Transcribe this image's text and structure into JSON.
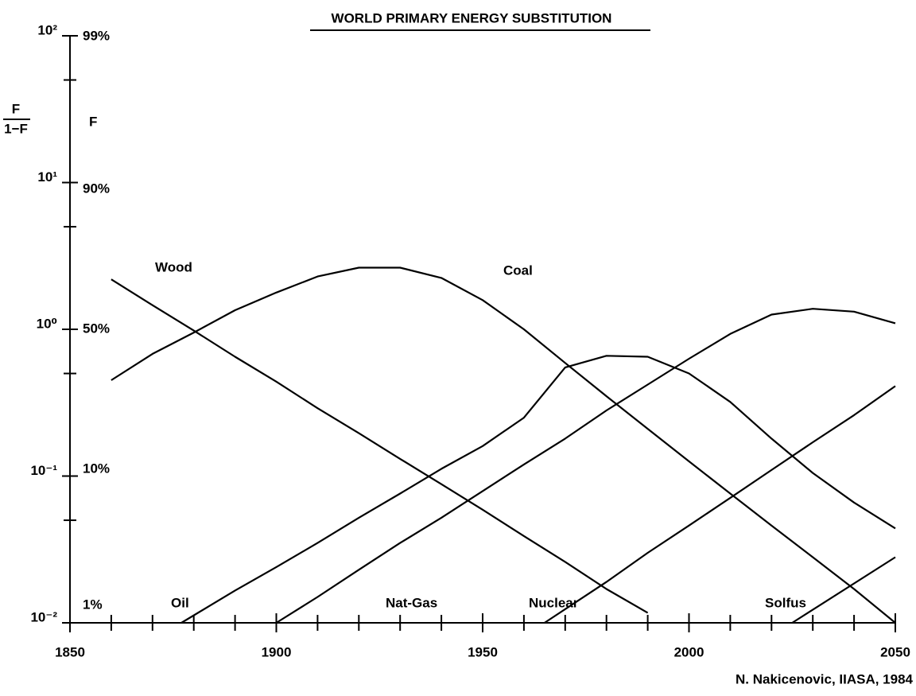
{
  "chart_data": {
    "type": "line",
    "title": "WORLD PRIMARY ENERGY SUBSTITUTION",
    "ylabel": {
      "numerator": "F",
      "denominator": "1−F"
    },
    "y2label": "F",
    "credit": "N. Nakicenovic, IIASA, 1984",
    "yscale": "log",
    "y2scale": "logit-percent",
    "xlim": [
      1850,
      2050
    ],
    "xticks": [
      1850,
      1900,
      1950,
      2000,
      2050
    ],
    "xminorticks": [
      1860,
      1870,
      1880,
      1890,
      1910,
      1920,
      1930,
      1940,
      1960,
      1970,
      1980,
      1990,
      2010,
      2020,
      2030,
      2040
    ],
    "ylim": [
      0.01,
      100
    ],
    "yticks": [
      {
        "value": 100,
        "label": "10²"
      },
      {
        "value": 10,
        "label": "10¹"
      },
      {
        "value": 1,
        "label": "10⁰"
      },
      {
        "value": 0.1,
        "label": "10⁻¹"
      },
      {
        "value": 0.01,
        "label": "10⁻²"
      }
    ],
    "yminorticks": [
      50,
      5,
      0.5,
      0.05
    ],
    "y2lim": [
      0.990099,
      99.0099
    ],
    "y2ticks": [
      {
        "value": 99,
        "label": "99%"
      },
      {
        "value": 90,
        "label": "90%"
      },
      {
        "value": 50,
        "label": "50%"
      },
      {
        "value": 10,
        "label": "10%"
      },
      {
        "value": 1,
        "label": "1%"
      }
    ],
    "grid": false,
    "series": [
      {
        "name": "Wood",
        "color": "#000000",
        "x": [
          1860,
          1870,
          1880,
          1890,
          1900,
          1910,
          1920,
          1930,
          1940,
          1950,
          1960,
          1970,
          1980,
          1990
        ],
        "values": [
          2.19,
          1.46,
          0.98,
          0.65,
          0.44,
          0.29,
          0.196,
          0.131,
          0.088,
          0.059,
          0.039,
          0.026,
          0.017,
          0.0117
        ]
      },
      {
        "name": "Coal",
        "color": "#000000",
        "x": [
          1860,
          1870,
          1880,
          1890,
          1900,
          1910,
          1920,
          1930,
          1940,
          1950,
          1960,
          1970,
          1980,
          1990,
          2000,
          2010,
          2020,
          2030,
          2040,
          2050
        ],
        "values": [
          0.45,
          0.68,
          0.95,
          1.35,
          1.78,
          2.29,
          2.63,
          2.63,
          2.24,
          1.58,
          1.0,
          0.59,
          0.35,
          0.21,
          0.126,
          0.076,
          0.046,
          0.028,
          0.017,
          0.01
        ]
      },
      {
        "name": "Oil",
        "color": "#000000",
        "x": [
          1877,
          1890,
          1900,
          1910,
          1920,
          1930,
          1940,
          1950,
          1960,
          1970,
          1980,
          1990,
          2000,
          2010,
          2020,
          2030,
          2040,
          2050
        ],
        "values": [
          0.01,
          0.0166,
          0.024,
          0.035,
          0.052,
          0.076,
          0.112,
          0.16,
          0.25,
          0.55,
          0.66,
          0.65,
          0.5,
          0.32,
          0.18,
          0.105,
          0.066,
          0.044
        ]
      },
      {
        "name": "Nat-Gas",
        "color": "#000000",
        "x": [
          1900,
          1910,
          1920,
          1930,
          1940,
          1950,
          1960,
          1970,
          1980,
          1990,
          2000,
          2010,
          2020,
          2030,
          2040,
          2050
        ],
        "values": [
          0.01,
          0.015,
          0.023,
          0.035,
          0.052,
          0.079,
          0.12,
          0.18,
          0.28,
          0.42,
          0.63,
          0.93,
          1.26,
          1.38,
          1.32,
          1.1
        ]
      },
      {
        "name": "Nuclear",
        "color": "#000000",
        "x": [
          1965,
          1980,
          1990,
          2000,
          2010,
          2020,
          2030,
          2040,
          2050
        ],
        "values": [
          0.01,
          0.019,
          0.03,
          0.046,
          0.071,
          0.11,
          0.17,
          0.26,
          0.41
        ]
      },
      {
        "name": "Solfus",
        "color": "#000000",
        "x": [
          2025,
          2050
        ],
        "values": [
          0.01,
          0.028
        ]
      }
    ]
  }
}
